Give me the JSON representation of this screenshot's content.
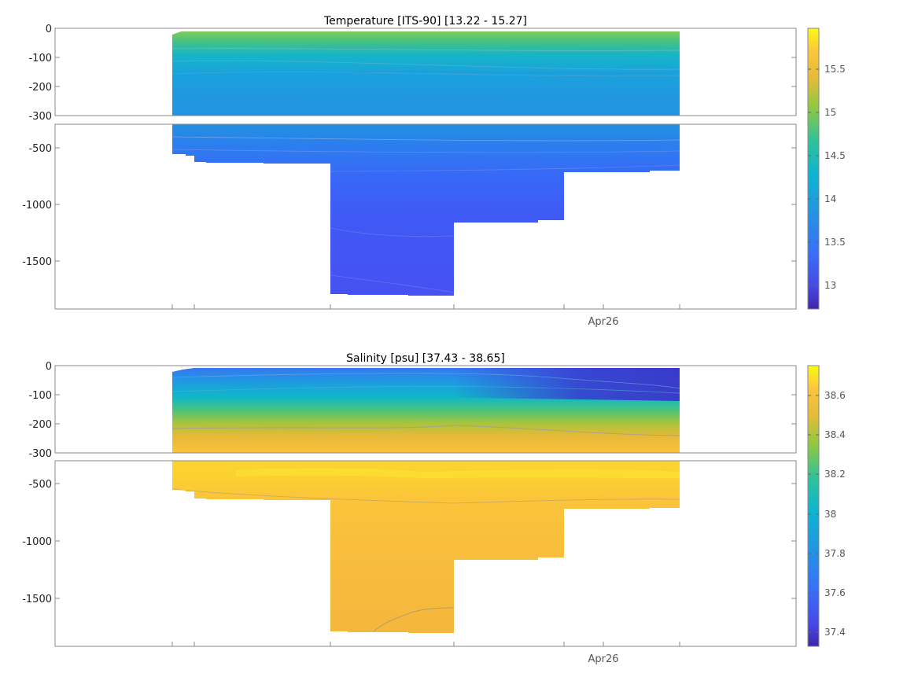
{
  "chart_data": [
    {
      "type": "heatmap",
      "title": "Temperature [ITS-90]   [13.22 - 15.27]",
      "xlabel": "",
      "x_tick_labels": [
        "Apr26"
      ],
      "upper_panel": {
        "ylim": [
          -300,
          0
        ],
        "yticks": [
          "0",
          "-100",
          "-200",
          "-300"
        ]
      },
      "lower_panel": {
        "ylim": [
          -1950,
          -330
        ],
        "yticks": [
          "-500",
          "-1000",
          "-1500"
        ]
      },
      "colorbar": {
        "range": [
          12.75,
          16.0
        ],
        "ticks": [
          "13",
          "13.5",
          "14",
          "14.5",
          "15",
          "15.5"
        ],
        "colormap": "parula"
      },
      "profile_max_depths": [
        {
          "x": 0.0,
          "depth": 550
        },
        {
          "x": 0.05,
          "depth": 640
        },
        {
          "x": 0.2,
          "depth": 640
        },
        {
          "x": 0.31,
          "depth": 1800
        },
        {
          "x": 0.55,
          "depth": 1800
        },
        {
          "x": 0.77,
          "depth": 1150
        },
        {
          "x": 1.0,
          "depth": 710
        }
      ]
    },
    {
      "type": "heatmap",
      "title": "Salinity [psu]   [37.43 - 38.65]",
      "xlabel": "",
      "x_tick_labels": [
        "Apr26"
      ],
      "upper_panel": {
        "ylim": [
          -300,
          0
        ],
        "yticks": [
          "0",
          "-100",
          "-200",
          "-300"
        ]
      },
      "lower_panel": {
        "ylim": [
          -1950,
          -330
        ],
        "yticks": [
          "-500",
          "-1000",
          "-1500"
        ]
      },
      "colorbar": {
        "range": [
          37.3,
          38.78
        ],
        "ticks": [
          "37.4",
          "37.6",
          "37.8",
          "38",
          "38.2",
          "38.4",
          "38.6"
        ],
        "colormap": "parula"
      },
      "profile_max_depths": [
        {
          "x": 0.0,
          "depth": 550
        },
        {
          "x": 0.05,
          "depth": 640
        },
        {
          "x": 0.2,
          "depth": 640
        },
        {
          "x": 0.31,
          "depth": 1800
        },
        {
          "x": 0.55,
          "depth": 1800
        },
        {
          "x": 0.77,
          "depth": 1150
        },
        {
          "x": 1.0,
          "depth": 710
        }
      ]
    }
  ]
}
